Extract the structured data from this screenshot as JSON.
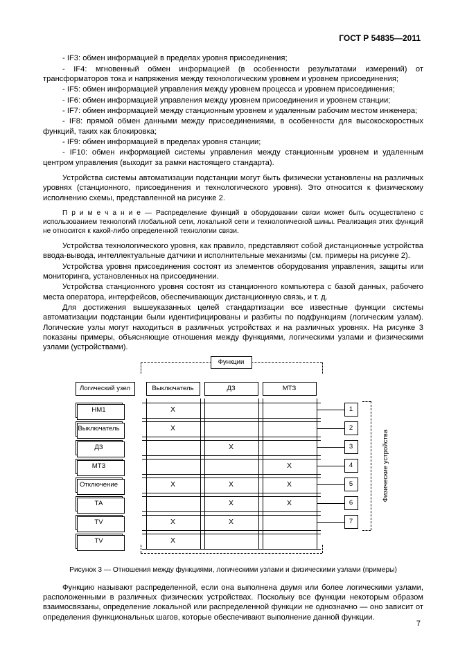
{
  "header": "ГОСТ Р 54835—2011",
  "bullets": [
    "- IF3: обмен информацией в пределах уровня присоединения;",
    "- IF4: мгновенный обмен информацией (в особенности результатами измерений) от трансформаторов тока и напряжения между технологическим уровнем и уровнем присоединения;",
    "- IF5: обмен информацией управления между уровнем процесса и уровнем присоединения;",
    "- IF6: обмен информацией управления между уровнем присоединения и уровнем станции;",
    "- IF7: обмен информацией между станционным уровнем и удаленным рабочим местом инженера;",
    "- IF8: прямой обмен данными между присоединениями, в особенности для высокоскоростных функций, таких как блокировка;",
    "- IF9: обмен информацией в пределах уровня станции;",
    "- IF10: обмен информацией системы управления между станционным уровнем и удаленным центром управления (выходит за рамки настоящего стандарта)."
  ],
  "p1": "Устройства системы автоматизации подстанции могут быть физически установлены на различных уровнях (станционного, присоединения и технологического уровня). Это относится к физическому исполнению схемы, представленной на рисунке 2.",
  "note_prefix": "П р и м е ч а н и е",
  "note_body": " — Распределение функций в оборудовании связи может быть осуществлено с использованием технологий глобальной сети, локальной сети и технологической шины. Реализация этих функций не относится к какой-либо определенной технологии связи.",
  "p2": "Устройства технологического уровня, как правило, представляют собой дистанционные устройства ввода-вывода, интеллектуальные датчики и исполнительные механизмы (см. примеры на рисунке 2).",
  "p3": "Устройства уровня присоединения состоят из элементов оборудования управления, защиты или мониторинга, установленных на присоединении.",
  "p4": "Устройства станционного уровня состоят из станционного компьютера с базой данных, рабочего места оператора, интерфейсов, обеспечивающих дистанционную связь, и т. д.",
  "p5": "Для достижения вышеуказанных целей стандартизации все известные функции системы автоматизации подстанции были идентифицированы и разбиты по подфункциям (логическим узлам). Логические узлы могут находиться в различных устройствах и на различных уровнях. На рисунке 3 показаны примеры, объясняющие отношения между функциями, логическими узлами и физическими узлами (устройствами).",
  "caption": "Рисунок 3 — Отношения между функциями, логическими узлами и физическими узлами (примеры)",
  "p6": "Функцию называют распределенной, если она выполнена двумя или более логическими узлами, расположенными в различных физических устройствах. Поскольку все функции некоторым образом взаимосвязаны, определение локальной или распределенной функции не однозначно — оно зависит от определения функциональных шагов, которые обеспечивают выполнение данной функции.",
  "page": "7",
  "fig": {
    "func_label": "Функции",
    "row_header": "Логический узел",
    "col_headers": [
      "Выключатель",
      "ДЗ",
      "МТЗ"
    ],
    "row_labels": [
      "HМ1",
      "Выключатель",
      "ДЗ",
      "МТЗ",
      "Отключение",
      "ТА",
      "ТV",
      "ТV"
    ],
    "devices": [
      "1",
      "2",
      "3",
      "4",
      "5",
      "6",
      "7"
    ],
    "side_label": "Физические устройства",
    "marks": [
      [
        true,
        false,
        false
      ],
      [
        true,
        false,
        false
      ],
      [
        false,
        true,
        false
      ],
      [
        false,
        false,
        true
      ],
      [
        true,
        true,
        true
      ],
      [
        false,
        true,
        true
      ],
      [
        true,
        true,
        false
      ],
      [
        true,
        false,
        false
      ]
    ]
  }
}
